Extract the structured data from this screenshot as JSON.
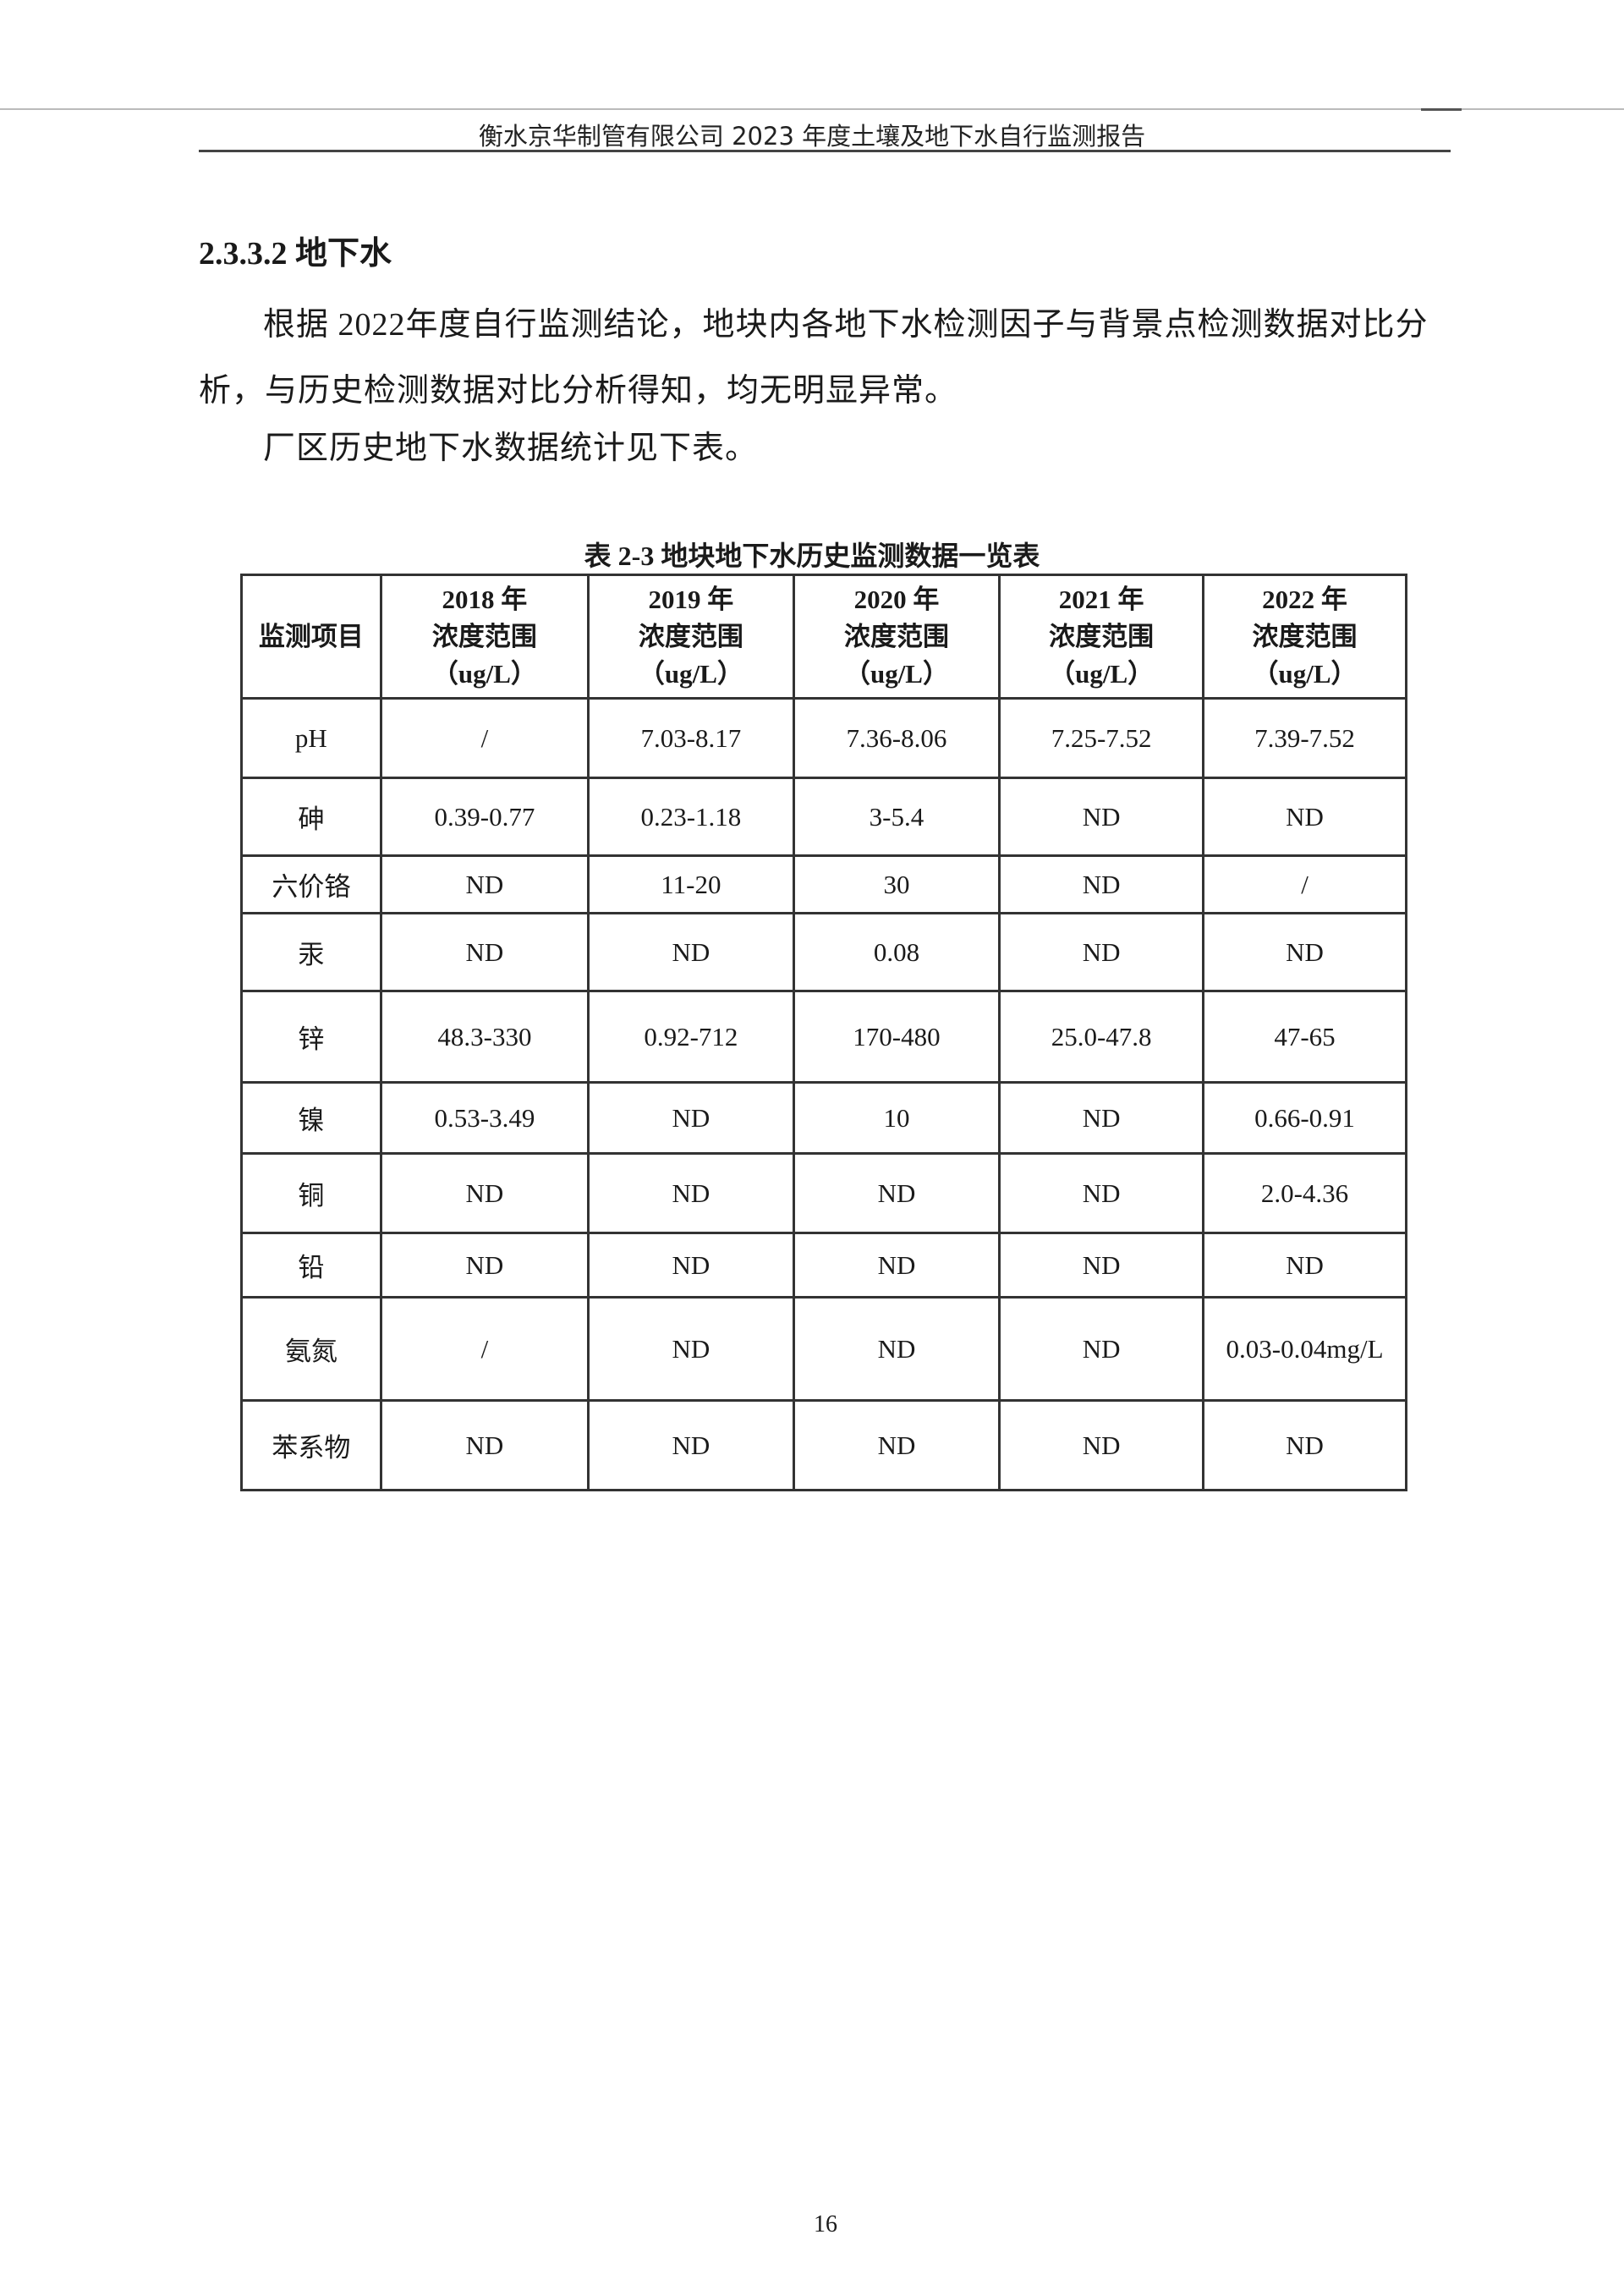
{
  "header": {
    "title": "衡水京华制管有限公司 2023 年度土壤及地下水自行监测报告"
  },
  "section": {
    "heading": "2.3.3.2 地下水"
  },
  "body": {
    "paragraph1": "根据 2022年度自行监测结论，地块内各地下水检测因子与背景点检测数据对比分析，与历史检测数据对比分析得知，均无明显异常。",
    "paragraph2": "厂区历史地下水数据统计见下表。"
  },
  "table": {
    "caption": "表 2-3   地块地下水历史监测数据一览表",
    "headers": [
      {
        "line1": "监测项目"
      },
      {
        "line1": "2018 年",
        "line2": "浓度范围",
        "line3": "（ug/L）"
      },
      {
        "line1": "2019 年",
        "line2": "浓度范围",
        "line3": "（ug/L）"
      },
      {
        "line1": "2020 年",
        "line2": "浓度范围",
        "line3": "（ug/L）"
      },
      {
        "line1": "2021 年",
        "line2": "浓度范围",
        "line3": "（ug/L）"
      },
      {
        "line1": "2022 年",
        "line2": "浓度范围",
        "line3": "（ug/L）"
      }
    ],
    "rows": [
      [
        "pH",
        "/",
        "7.03-8.17",
        "7.36-8.06",
        "7.25-7.52",
        "7.39-7.52"
      ],
      [
        "砷",
        "0.39-0.77",
        "0.23-1.18",
        "3-5.4",
        "ND",
        "ND"
      ],
      [
        "六价铬",
        "ND",
        "11-20",
        "30",
        "ND",
        "/"
      ],
      [
        "汞",
        "ND",
        "ND",
        "0.08",
        "ND",
        "ND"
      ],
      [
        "锌",
        "48.3-330",
        "0.92-712",
        "170-480",
        "25.0-47.8",
        "47-65"
      ],
      [
        "镍",
        "0.53-3.49",
        "ND",
        "10",
        "ND",
        "0.66-0.91"
      ],
      [
        "铜",
        "ND",
        "ND",
        "ND",
        "ND",
        "2.0-4.36"
      ],
      [
        "铅",
        "ND",
        "ND",
        "ND",
        "ND",
        "ND"
      ],
      [
        "氨氮",
        "/",
        "ND",
        "ND",
        "ND",
        "0.03-0.04mg/L"
      ],
      [
        "苯系物",
        "ND",
        "ND",
        "ND",
        "ND",
        "ND"
      ]
    ]
  },
  "footer": {
    "page_number": "16"
  }
}
